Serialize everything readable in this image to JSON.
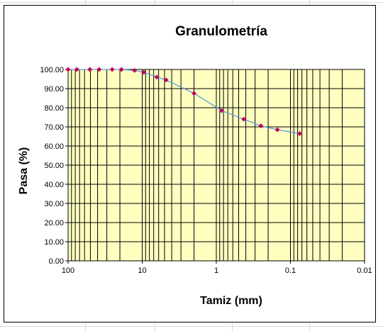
{
  "chart_data": {
    "type": "line",
    "title": "Granulometría",
    "xlabel": "Tamiz (mm)",
    "ylabel": "Pasa (%)",
    "x_scale": "log",
    "x_reversed": true,
    "xlim": [
      100,
      0.01
    ],
    "ylim": [
      0,
      100
    ],
    "x_ticks": [
      100,
      10,
      1,
      0.1,
      0.01
    ],
    "x_tick_labels": [
      "100",
      "10",
      "1",
      "0.1",
      "0.01"
    ],
    "y_ticks": [
      0,
      10,
      20,
      30,
      40,
      50,
      60,
      70,
      80,
      90,
      100
    ],
    "y_tick_labels": [
      "0.00",
      "10.00",
      "20.00",
      "30.00",
      "40.00",
      "50.00",
      "60.00",
      "70.00",
      "80.00",
      "90.00",
      "100.00"
    ],
    "grid": true,
    "plot_background": "#ffffc0",
    "line_color": "#5b9bd5",
    "marker_color": "#c00060",
    "series": [
      {
        "x": [
          100,
          76.2,
          50.8,
          38.1,
          25.4,
          19.05,
          12.7,
          9.525,
          6.35,
          4.76,
          2.0,
          0.85,
          0.425,
          0.25,
          0.15,
          0.075
        ],
        "y": [
          100.0,
          100.0,
          100.0,
          100.0,
          100.0,
          100.0,
          99.5,
          98.5,
          96.0,
          94.5,
          87.5,
          78.5,
          74.0,
          70.5,
          68.5,
          66.5
        ]
      }
    ]
  }
}
